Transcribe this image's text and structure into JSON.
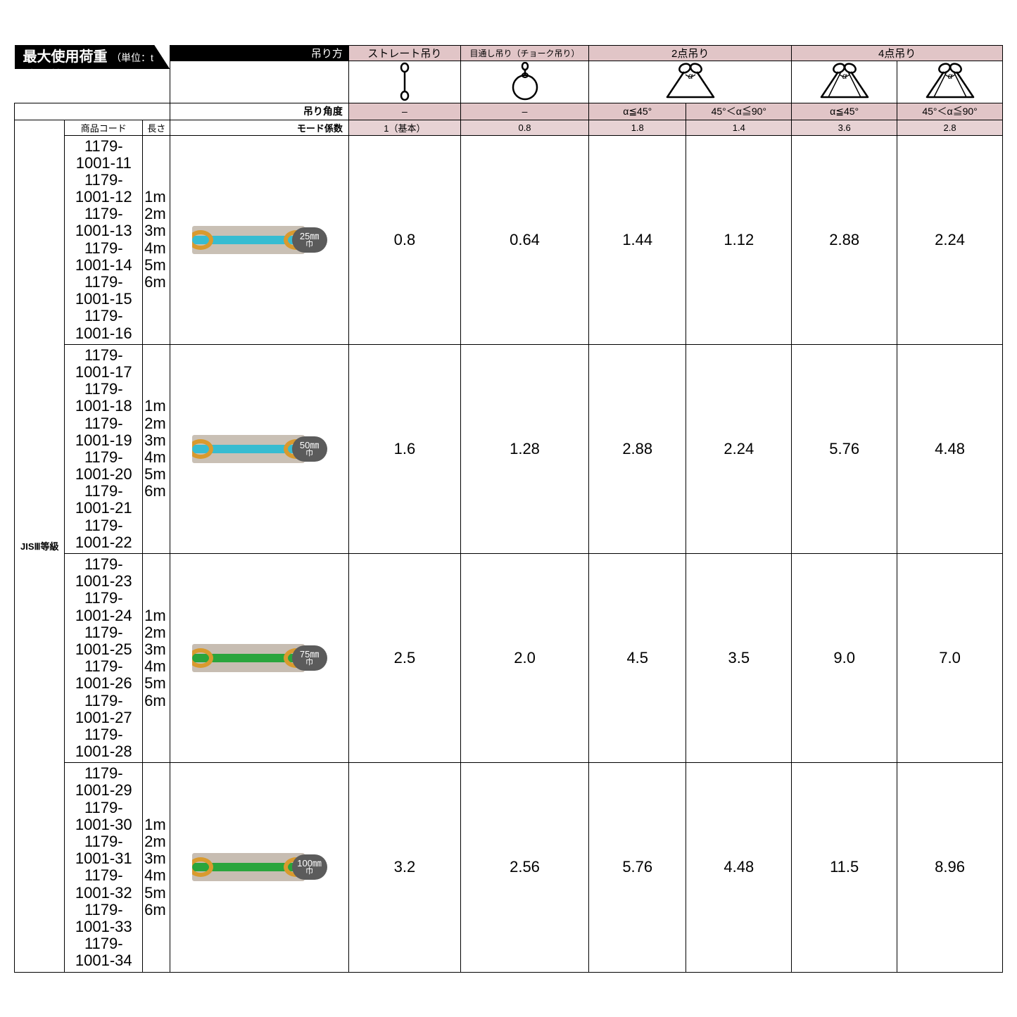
{
  "title": "最大使用荷重",
  "title_unit": "（単位：t（トン））",
  "labels": {
    "method": "吊り方",
    "angle": "吊り角度",
    "mode": "モード係数",
    "grade": "JISⅢ等級",
    "code_col": "商品コード",
    "len_col": "長さ"
  },
  "methods": {
    "straight": "ストレート吊り",
    "choker": "目通し吊り（チョーク吊り）",
    "two_pt": "2点吊り",
    "four_pt": "4点吊り"
  },
  "angles": {
    "dash": "–",
    "le45": "α≦45°",
    "gt45": "45°＜α≦90°"
  },
  "mode_coef": {
    "c1": "1（基本）",
    "c2": "0.8",
    "c3": "1.8",
    "c4": "1.4",
    "c5": "3.6",
    "c6": "2.8"
  },
  "rows": [
    {
      "codes": [
        "1179-1001-11",
        "1179-1001-12",
        "1179-1001-13",
        "1179-1001-14",
        "1179-1001-15",
        "1179-1001-16"
      ],
      "lens": [
        "1m",
        "2m",
        "3m",
        "4m",
        "5m",
        "6m"
      ],
      "width_label": "25㎜",
      "width_sub": "巾",
      "sling_bg": "#c9c0b5",
      "band_color": "#37bcd1",
      "vals": [
        "0.8",
        "0.64",
        "1.44",
        "1.12",
        "2.88",
        "2.24"
      ]
    },
    {
      "codes": [
        "1179-1001-17",
        "1179-1001-18",
        "1179-1001-19",
        "1179-1001-20",
        "1179-1001-21",
        "1179-1001-22"
      ],
      "lens": [
        "1m",
        "2m",
        "3m",
        "4m",
        "5m",
        "6m"
      ],
      "width_label": "50㎜",
      "width_sub": "巾",
      "sling_bg": "#c9c0b5",
      "band_color": "#37bcd1",
      "vals": [
        "1.6",
        "1.28",
        "2.88",
        "2.24",
        "5.76",
        "4.48"
      ]
    },
    {
      "codes": [
        "1179-1001-23",
        "1179-1001-24",
        "1179-1001-25",
        "1179-1001-26",
        "1179-1001-27",
        "1179-1001-28"
      ],
      "lens": [
        "1m",
        "2m",
        "3m",
        "4m",
        "5m",
        "6m"
      ],
      "width_label": "75㎜",
      "width_sub": "巾",
      "sling_bg": "#c7bdb2",
      "band_color": "#2aa53c",
      "vals": [
        "2.5",
        "2.0",
        "4.5",
        "3.5",
        "9.0",
        "7.0"
      ]
    },
    {
      "codes": [
        "1179-1001-29",
        "1179-1001-30",
        "1179-1001-31",
        "1179-1001-32",
        "1179-1001-33",
        "1179-1001-34"
      ],
      "lens": [
        "1m",
        "2m",
        "3m",
        "4m",
        "5m",
        "6m"
      ],
      "width_label": "100㎜",
      "width_sub": "巾",
      "sling_bg": "#c7bdb2",
      "band_color": "#2aa53c",
      "vals": [
        "3.2",
        "2.56",
        "5.76",
        "4.48",
        "11.5",
        "8.96"
      ]
    }
  ],
  "colors": {
    "header_pink": "#e1c5c7",
    "header_pink_lite": "#e7d2d4",
    "black": "#000000",
    "white": "#ffffff",
    "badge": "#5b5b5b"
  }
}
